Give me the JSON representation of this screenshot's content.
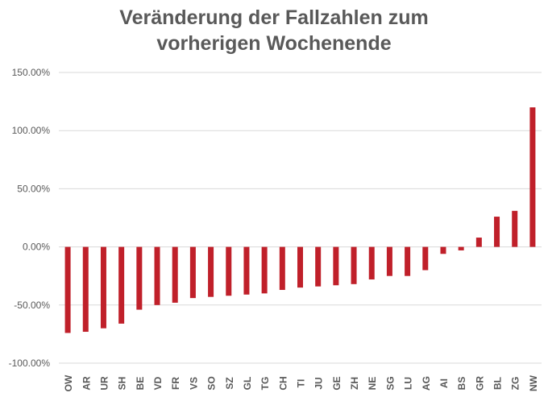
{
  "title_lines": [
    "Veränderung der Fallzahlen zum",
    "vorherigen Wochenende"
  ],
  "chart_data": {
    "type": "bar",
    "title": "Veränderung der Fallzahlen zum vorherigen Wochenende",
    "xlabel": "",
    "ylabel": "",
    "ylim": [
      -100,
      150
    ],
    "yticks": [
      150,
      100,
      50,
      0,
      -50,
      -100
    ],
    "ytick_labels": [
      "150.00%",
      "100.00%",
      "50.00%",
      "0.00%",
      "-50.00%",
      "-100.00%"
    ],
    "grid": true,
    "categories": [
      "OW",
      "AR",
      "UR",
      "SH",
      "BE",
      "VD",
      "FR",
      "VS",
      "SO",
      "SZ",
      "GL",
      "TG",
      "CH",
      "TI",
      "JU",
      "GE",
      "ZH",
      "NE",
      "SG",
      "LU",
      "AG",
      "AI",
      "BS",
      "GR",
      "BL",
      "ZG",
      "NW"
    ],
    "values": [
      -74,
      -73,
      -70,
      -66,
      -54,
      -50,
      -48,
      -44,
      -43,
      -42,
      -41,
      -40,
      -37,
      -35,
      -34,
      -33,
      -32,
      -28,
      -25,
      -25,
      -20,
      -6,
      -3,
      8,
      26,
      31,
      120
    ]
  },
  "colors": {
    "bar": "#c0202a",
    "grid": "#d9d9d9",
    "text": "#595959"
  }
}
